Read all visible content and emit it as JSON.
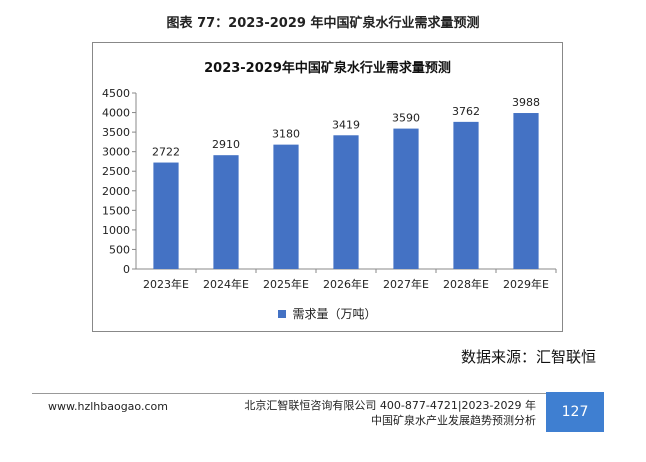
{
  "figure_caption": "图表 77：2023-2029 年中国矿泉水行业需求量预测",
  "chart_data": {
    "type": "bar",
    "title": "2023-2029年中国矿泉水行业需求量预测",
    "categories": [
      "2023年E",
      "2024年E",
      "2025年E",
      "2026年E",
      "2027年E",
      "2028年E",
      "2029年E"
    ],
    "series": [
      {
        "name": "需求量（万吨）",
        "values": [
          2722,
          2910,
          3180,
          3419,
          3590,
          3762,
          3988
        ]
      }
    ],
    "ylim": [
      0,
      4500
    ],
    "yticks": [
      0,
      500,
      1000,
      1500,
      2000,
      2500,
      3000,
      3500,
      4000,
      4500
    ],
    "xlabel": "",
    "ylabel": "",
    "legend_position": "bottom",
    "bar_color": "#4472c4"
  },
  "source": "数据来源：汇智联恒",
  "footer": {
    "url": "www.hzlhbaogao.com",
    "company_line1": "北京汇智联恒咨询有限公司  400-877-4721|2023-2029 年",
    "company_line2": "中国矿泉水产业发展趋势预测分析",
    "page_number": "127",
    "page_color": "#3f7fd1"
  }
}
